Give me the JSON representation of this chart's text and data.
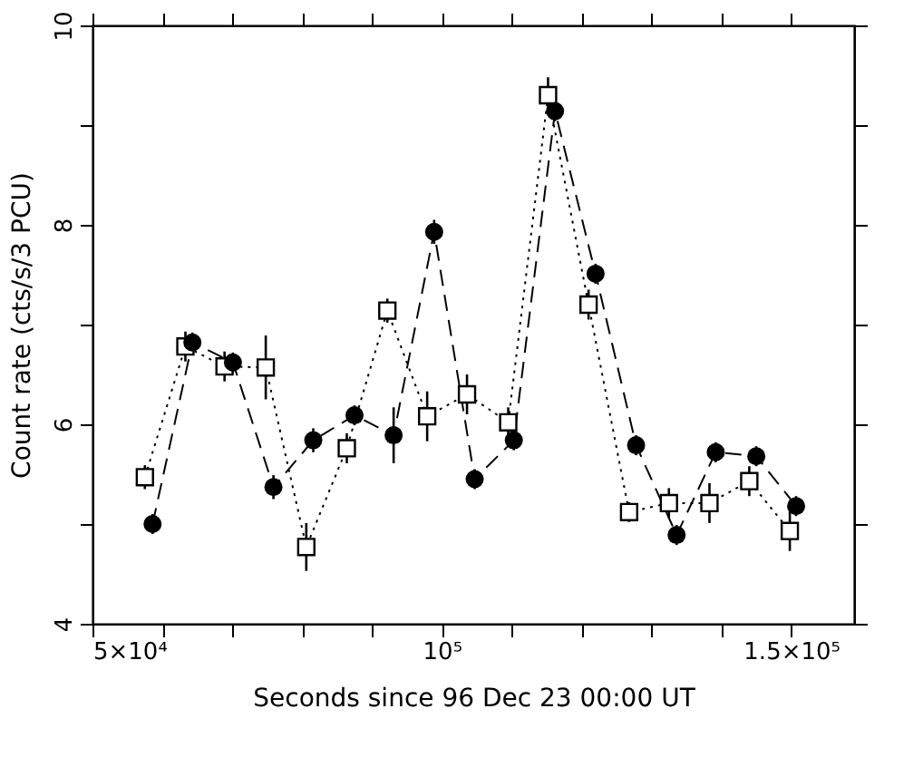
{
  "chart_data": {
    "type": "line",
    "xlabel": "Seconds since 96 Dec 23 00:00 UT",
    "ylabel": "Count rate (cts/s/3 PCU)",
    "xlim": [
      50000,
      159000
    ],
    "xticks": [
      {
        "value": 50000,
        "label": "5×10⁴"
      },
      {
        "value": 60000,
        "label": null
      },
      {
        "value": 70000,
        "label": null
      },
      {
        "value": 80000,
        "label": null
      },
      {
        "value": 90000,
        "label": null
      },
      {
        "value": 100000,
        "label": "10⁵"
      },
      {
        "value": 110000,
        "label": null
      },
      {
        "value": 120000,
        "label": null
      },
      {
        "value": 130000,
        "label": null
      },
      {
        "value": 140000,
        "label": null
      },
      {
        "value": 150000,
        "label": "1.5×10⁵"
      }
    ],
    "ylim": [
      4,
      10
    ],
    "yticks": [
      4,
      {
        "value": 5,
        "label": null
      },
      6,
      {
        "value": 7,
        "label": null
      },
      8,
      {
        "value": 9,
        "label": null
      },
      10
    ],
    "grid": false,
    "series": [
      {
        "color": "#000000",
        "marker": "circle",
        "line_style": "dashed",
        "x": [
          58600,
          64300,
          70100,
          75900,
          81600,
          87500,
          93100,
          98900,
          104700,
          110300,
          116200,
          122000,
          127800,
          133600,
          139200,
          145000,
          150700
        ],
        "values": [
          5.0,
          6.82,
          6.62,
          5.37,
          5.84,
          6.09,
          5.89,
          7.93,
          5.45,
          5.84,
          9.14,
          7.51,
          5.79,
          4.89,
          5.72,
          5.68,
          5.18
        ],
        "errors": [
          0.1,
          0.1,
          0.1,
          0.12,
          0.12,
          0.1,
          0.28,
          0.12,
          0.1,
          0.1,
          0.1,
          0.1,
          0.1,
          0.1,
          0.1,
          0.1,
          0.1
        ]
      },
      {
        "color": "#000000",
        "marker": "square",
        "line_style": "dotted",
        "x": [
          57500,
          63300,
          68900,
          74800,
          80600,
          86400,
          92200,
          97900,
          103600,
          109500,
          115200,
          121000,
          126800,
          132500,
          138300,
          144000,
          149800
        ],
        "values": [
          5.47,
          6.78,
          6.58,
          6.57,
          4.77,
          5.76,
          7.14,
          6.08,
          6.3,
          6.02,
          9.3,
          7.2,
          5.12,
          5.21,
          5.21,
          5.43,
          4.93
        ],
        "errors": [
          0.12,
          0.15,
          0.15,
          0.32,
          0.24,
          0.15,
          0.12,
          0.25,
          0.2,
          0.15,
          0.18,
          0.15,
          0.1,
          0.15,
          0.2,
          0.15,
          0.2
        ]
      }
    ]
  }
}
